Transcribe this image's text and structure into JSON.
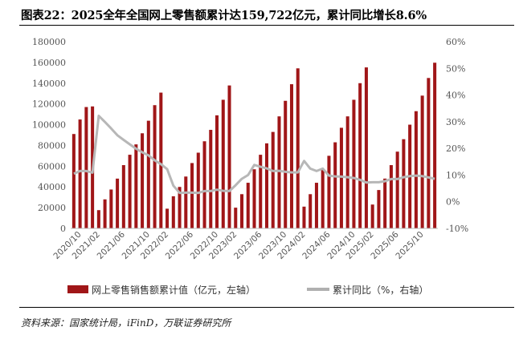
{
  "title": "图表22：2025全年全国网上零售额累计达159,722亿元，累计同比增长8.6%",
  "legend": {
    "bar_label": "网上零售销售额累计值（亿元，左轴）",
    "line_label": "累计同比（%，右轴）"
  },
  "source": "资料来源：国家统计局，iFinD，万联证券研究所",
  "colors": {
    "bar": "#a01618",
    "line": "#b7b7b7"
  },
  "chart_data": {
    "type": "bar",
    "title": "",
    "x_tick_labels": [
      "2020/10",
      "2021/02",
      "2021/06",
      "2021/10",
      "2022/02",
      "2022/06",
      "2022/10",
      "2023/02",
      "2023/06",
      "2023/10",
      "2024/02",
      "2024/06",
      "2024/10",
      "2025/02",
      "2025/06",
      "2025/10"
    ],
    "y_left": {
      "min": 0,
      "max": 180000,
      "step": 20000,
      "ticks": [
        "0",
        "20000",
        "40000",
        "60000",
        "80000",
        "100000",
        "120000",
        "140000",
        "160000",
        "180000"
      ]
    },
    "y_right": {
      "min": -10,
      "max": 60,
      "step": 10,
      "ticks": [
        "-10%",
        "0%",
        "10%",
        "20%",
        "30%",
        "40%",
        "50%",
        "60%"
      ]
    },
    "categories": [
      "2020/09",
      "2020/10",
      "2020/11",
      "2020/12",
      "2021/02",
      "2021/03",
      "2021/04",
      "2021/05",
      "2021/06",
      "2021/07",
      "2021/08",
      "2021/09",
      "2021/10",
      "2021/11",
      "2021/12",
      "2022/02",
      "2022/03",
      "2022/04",
      "2022/05",
      "2022/06",
      "2022/07",
      "2022/08",
      "2022/09",
      "2022/10",
      "2022/11",
      "2022/12",
      "2023/02",
      "2023/03",
      "2023/04",
      "2023/05",
      "2023/06",
      "2023/07",
      "2023/08",
      "2023/09",
      "2023/10",
      "2023/11",
      "2023/12",
      "2024/02",
      "2024/03",
      "2024/04",
      "2024/05",
      "2024/06",
      "2024/07",
      "2024/08",
      "2024/09",
      "2024/10",
      "2024/11",
      "2024/12",
      "2025/02",
      "2025/03",
      "2025/04",
      "2025/05",
      "2025/06",
      "2025/07",
      "2025/08",
      "2025/09",
      "2025/10",
      "2025/11",
      "2025/12"
    ],
    "series": [
      {
        "name": "网上零售销售额累计值（亿元，左轴）",
        "axis": "left",
        "type": "bar",
        "values": [
          91000,
          105000,
          117000,
          117600,
          17600,
          28000,
          37500,
          48000,
          61000,
          71000,
          81000,
          91700,
          103800,
          118800,
          130900,
          19000,
          31000,
          40000,
          50000,
          63000,
          73000,
          84000,
          95000,
          109000,
          124000,
          137800,
          20000,
          33000,
          44000,
          57000,
          71000,
          82000,
          93000,
          108000,
          123000,
          139000,
          154300,
          21000,
          33000,
          44000,
          57000,
          70000,
          83000,
          97000,
          108000,
          124000,
          140000,
          155200,
          23000,
          37000,
          48000,
          61000,
          74000,
          86000,
          100000,
          113000,
          128000,
          145000,
          159722
        ]
      },
      {
        "name": "累计同比（%，右轴）",
        "axis": "right",
        "type": "line",
        "values": [
          10.5,
          11.5,
          11.5,
          10.9,
          32.2,
          29.9,
          27.5,
          24.9,
          23.2,
          21.5,
          19.9,
          18.5,
          17.4,
          15.5,
          14.1,
          12.2,
          6.0,
          3.3,
          3.4,
          3.4,
          3.3,
          4.0,
          4.0,
          4.5,
          4.1,
          4.0,
          6.2,
          8.6,
          10.0,
          13.8,
          13.1,
          12.5,
          11.5,
          11.6,
          11.2,
          11.0,
          11.0,
          15.3,
          12.4,
          11.5,
          12.4,
          9.8,
          9.5,
          9.4,
          9.2,
          8.9,
          8.2,
          7.2,
          7.3,
          7.3,
          7.7,
          8.5,
          8.5,
          9.2,
          9.6,
          9.8,
          9.6,
          9.1,
          8.6
        ]
      }
    ]
  }
}
